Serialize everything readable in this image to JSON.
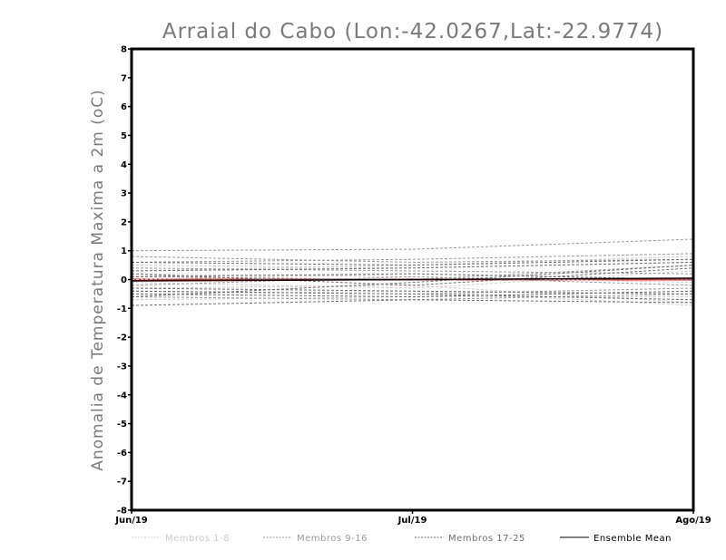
{
  "chart_data": {
    "type": "line",
    "title": "Arraial do Cabo (Lon:-42.0267,Lat:-22.9774)",
    "xlabel": "",
    "ylabel": "Anomalia de Temperatura Maxima a 2m (oC)",
    "categories": [
      "Jun/19",
      "Jul/19",
      "Ago/19"
    ],
    "ylim": [
      -8,
      8
    ],
    "yticks": [
      -8,
      -7,
      -6,
      -5,
      -4,
      -3,
      -2,
      -1,
      0,
      1,
      2,
      3,
      4,
      5,
      6,
      7,
      8
    ],
    "grid": false,
    "legend_position": "bottom",
    "legend": [
      {
        "label": "Membros 1-8",
        "color": "#cccccc",
        "style": "dashed"
      },
      {
        "label": "Membros 9-16",
        "color": "#9a9a9a",
        "style": "dashed"
      },
      {
        "label": "Membros 17-25",
        "color": "#6e6e6e",
        "style": "dashed"
      },
      {
        "label": "Ensemble Mean",
        "color": "#000000",
        "style": "solid"
      }
    ],
    "series": [
      {
        "group": 0,
        "values": [
          0.5,
          0.4,
          0.6
        ]
      },
      {
        "group": 0,
        "values": [
          0.3,
          0.5,
          0.8
        ]
      },
      {
        "group": 0,
        "values": [
          -0.3,
          -0.2,
          -0.8
        ]
      },
      {
        "group": 0,
        "values": [
          -0.7,
          -0.6,
          -0.6
        ]
      },
      {
        "group": 0,
        "values": [
          0.2,
          0.1,
          -0.1
        ]
      },
      {
        "group": 0,
        "values": [
          -0.1,
          -0.3,
          0.3
        ]
      },
      {
        "group": 0,
        "values": [
          0.0,
          0.2,
          0.0
        ]
      },
      {
        "group": 0,
        "values": [
          -0.5,
          -0.4,
          -0.9
        ]
      },
      {
        "group": 1,
        "values": [
          1.0,
          1.05,
          1.4
        ]
      },
      {
        "group": 1,
        "values": [
          0.6,
          0.7,
          0.9
        ]
      },
      {
        "group": 1,
        "values": [
          -0.4,
          -0.5,
          -0.3
        ]
      },
      {
        "group": 1,
        "values": [
          0.1,
          0.0,
          0.5
        ]
      },
      {
        "group": 1,
        "values": [
          -0.6,
          -0.7,
          -0.5
        ]
      },
      {
        "group": 1,
        "values": [
          0.4,
          0.3,
          0.2
        ]
      },
      {
        "group": 1,
        "values": [
          -0.2,
          0.1,
          -0.2
        ]
      },
      {
        "group": 1,
        "values": [
          0.8,
          0.6,
          0.7
        ]
      },
      {
        "group": 2,
        "values": [
          -0.9,
          -0.7,
          -0.8
        ]
      },
      {
        "group": 2,
        "values": [
          0.3,
          0.4,
          0.6
        ]
      },
      {
        "group": 2,
        "values": [
          -0.5,
          -0.6,
          -0.4
        ]
      },
      {
        "group": 2,
        "values": [
          -0.6,
          -0.1,
          0.5
        ]
      },
      {
        "group": 2,
        "values": [
          0.2,
          -0.2,
          0.4
        ]
      },
      {
        "group": 2,
        "values": [
          -0.3,
          -0.4,
          -0.5
        ]
      },
      {
        "group": 2,
        "values": [
          0.6,
          0.5,
          0.7
        ]
      },
      {
        "group": 2,
        "values": [
          -0.4,
          -0.5,
          -0.7
        ]
      },
      {
        "group": 2,
        "values": [
          0.1,
          0.2,
          0.0
        ]
      },
      {
        "group": 3,
        "values": [
          -0.05,
          0.0,
          0.05
        ]
      }
    ]
  },
  "colors": {
    "ensemble_mean_overlay": "#d42020",
    "axis": "#000000",
    "title": "#7a7a7a"
  }
}
